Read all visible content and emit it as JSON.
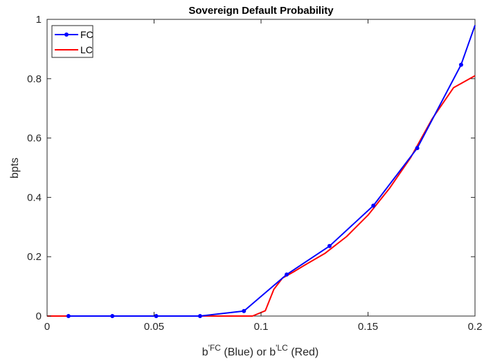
{
  "chart_data": {
    "type": "line",
    "title": "Sovereign Default Probability",
    "ylabel": "bpts",
    "xlabel": {
      "prefix1": "b",
      "sup1": "'FC",
      "mid": " (Blue) or b",
      "sup2": "'LC",
      "suffix": " (Red)"
    },
    "xlim": [
      0,
      0.2
    ],
    "ylim": [
      0,
      1
    ],
    "x_ticks": [
      0,
      0.05,
      0.1,
      0.15,
      0.2
    ],
    "x_tick_labels": [
      "0",
      "0.05",
      "0.1",
      "0.15",
      "0.2"
    ],
    "y_ticks": [
      0,
      0.2,
      0.4,
      0.6,
      0.8,
      1
    ],
    "y_tick_labels": [
      "0",
      "0.2",
      "0.4",
      "0.6",
      "0.8",
      "1"
    ],
    "legend_position": "top-left",
    "grid": false,
    "series": [
      {
        "name": "FC",
        "color": "#0000ff",
        "marker": "dot",
        "x": [
          0.01,
          0.0305,
          0.051,
          0.0715,
          0.092,
          0.112,
          0.132,
          0.1525,
          0.173,
          0.1935,
          0.2
        ],
        "y": [
          0,
          0,
          0,
          0,
          0.017,
          0.14,
          0.236,
          0.372,
          0.566,
          0.847,
          0.98
        ]
      },
      {
        "name": "LC",
        "color": "#ff0000",
        "marker": "none",
        "x": [
          0.0,
          0.01,
          0.03,
          0.05,
          0.07,
          0.09,
          0.096,
          0.102,
          0.106,
          0.11,
          0.115,
          0.12,
          0.13,
          0.14,
          0.15,
          0.16,
          0.17,
          0.18,
          0.19,
          0.2
        ],
        "y": [
          0,
          0,
          0,
          0,
          0,
          0,
          0,
          0.018,
          0.09,
          0.128,
          0.148,
          0.17,
          0.212,
          0.268,
          0.34,
          0.43,
          0.535,
          0.665,
          0.77,
          0.81
        ]
      }
    ]
  }
}
